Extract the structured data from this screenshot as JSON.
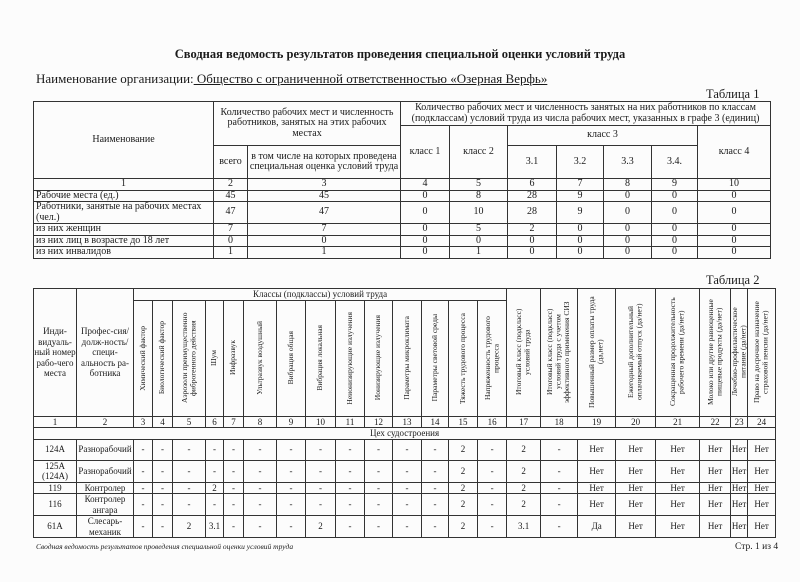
{
  "title": "Сводная ведомость результатов проведения специальной оценки условий труда",
  "organization": {
    "label": "Наименование организации:",
    "value": " Общество с ограниченной ответственностью «Озерная Верфь»"
  },
  "table1": {
    "label": "Таблица 1",
    "headers": {
      "name": "Наименование",
      "group1": "Количество рабочих мест и численность работников, занятых на этих рабочих местах",
      "total": "всего",
      "assessed": "в том числе на которых проведена специальная оценка условий труда",
      "group2": "Количество рабочих мест и численность занятых на них работников по классам (подклассам) условий труда из числа рабочих мест, указанных в графе 3 (единиц)",
      "class1": "класс 1",
      "class2": "класс 2",
      "class3": "класс 3",
      "c31": "3.1",
      "c32": "3.2",
      "c33": "3.3",
      "c34": "3.4.",
      "class4": "класс 4"
    },
    "col_numbers": [
      "1",
      "2",
      "3",
      "4",
      "5",
      "6",
      "7",
      "8",
      "9",
      "10"
    ],
    "rows": [
      [
        "Рабочие места (ед.)",
        "45",
        "45",
        "0",
        "8",
        "28",
        "9",
        "0",
        "0",
        "0"
      ],
      [
        "Работники, занятые на рабочих местах (чел.)",
        "47",
        "47",
        "0",
        "10",
        "28",
        "9",
        "0",
        "0",
        "0"
      ],
      [
        "из них женщин",
        "7",
        "7",
        "0",
        "5",
        "2",
        "0",
        "0",
        "0",
        "0"
      ],
      [
        "из них лиц в возрасте до 18 лет",
        "0",
        "0",
        "0",
        "0",
        "0",
        "0",
        "0",
        "0",
        "0"
      ],
      [
        "из них инвалидов",
        "1",
        "1",
        "0",
        "1",
        "0",
        "0",
        "0",
        "0",
        "0"
      ]
    ]
  },
  "table2": {
    "label": "Таблица 2",
    "headers": {
      "id": "Инди-видуаль-ный номер рабо-чего места",
      "profession": "Профес-сия/долж-ность/специ-альность ра-ботника",
      "classes": "Классы (подклассы) условий труда",
      "vertical": [
        "Химический фактор",
        "Биологический фактор",
        "Аэрозоли преимущественно фиброгенного действия",
        "Шум",
        "Инфразвук",
        "Ультразвук воздушный",
        "Вибрация общая",
        "Вибрация локальная",
        "Неионизирующие излучения",
        "Ионизирующие излучения",
        "Параметры микроклимата",
        "Параметры световой среды",
        "Тяжесть трудового процесса",
        "Напряженность трудового процесса",
        "Итоговый класс (подкласс) условий труда",
        "Итоговый класс (подкласс) условий труда с учетом эффективного применения СИЗ",
        "Повышенный размер оплаты труда (да,нет)",
        "Ежегодный дополнительный оплачиваемый отпуск (да/нет)",
        "Сокращенная продолжительность рабочего времени (да/нет)",
        "Молоко или другие равноценные пищевые продукты (да/нет)",
        "Лечебно-профилактическое питание (да/нет)",
        "Право на досрочное назначение страховой пенсии (да/нет)"
      ]
    },
    "col_numbers": [
      "1",
      "2",
      "3",
      "4",
      "5",
      "6",
      "7",
      "8",
      "9",
      "10",
      "11",
      "12",
      "13",
      "14",
      "15",
      "16",
      "17",
      "18",
      "19",
      "20",
      "21",
      "22",
      "23",
      "24"
    ],
    "section": "Цех судостроения",
    "rows": [
      [
        "124А",
        "Разнорабочий",
        "-",
        "-",
        "-",
        "-",
        "-",
        "-",
        "-",
        "-",
        "-",
        "-",
        "-",
        "-",
        "2",
        "-",
        "2",
        "-",
        "Нет",
        "Нет",
        "Нет",
        "Нет",
        "Нет",
        "Нет"
      ],
      [
        "125А (124А)",
        "Разнорабочий",
        "-",
        "-",
        "-",
        "-",
        "-",
        "-",
        "-",
        "-",
        "-",
        "-",
        "-",
        "-",
        "2",
        "-",
        "2",
        "-",
        "Нет",
        "Нет",
        "Нет",
        "Нет",
        "Нет",
        "Нет"
      ],
      [
        "119",
        "Контролер",
        "-",
        "-",
        "-",
        "2",
        "-",
        "-",
        "-",
        "-",
        "-",
        "-",
        "-",
        "-",
        "2",
        "-",
        "2",
        "-",
        "Нет",
        "Нет",
        "Нет",
        "Нет",
        "Нет",
        "Нет"
      ],
      [
        "116",
        "Контролер ангара",
        "-",
        "-",
        "-",
        "-",
        "-",
        "-",
        "-",
        "-",
        "-",
        "-",
        "-",
        "-",
        "2",
        "-",
        "2",
        "-",
        "Нет",
        "Нет",
        "Нет",
        "Нет",
        "Нет",
        "Нет"
      ],
      [
        "61А",
        "Слесарь-механик",
        "-",
        "-",
        "2",
        "3.1",
        "-",
        "-",
        "-",
        "2",
        "-",
        "-",
        "-",
        "-",
        "2",
        "-",
        "3.1",
        "-",
        "Да",
        "Нет",
        "Нет",
        "Нет",
        "Нет",
        "Нет"
      ]
    ]
  },
  "footer": {
    "left": "Сводная ведомость результатов проведения специальной оценки условий труда",
    "right": "Стр. 1 из 4"
  }
}
